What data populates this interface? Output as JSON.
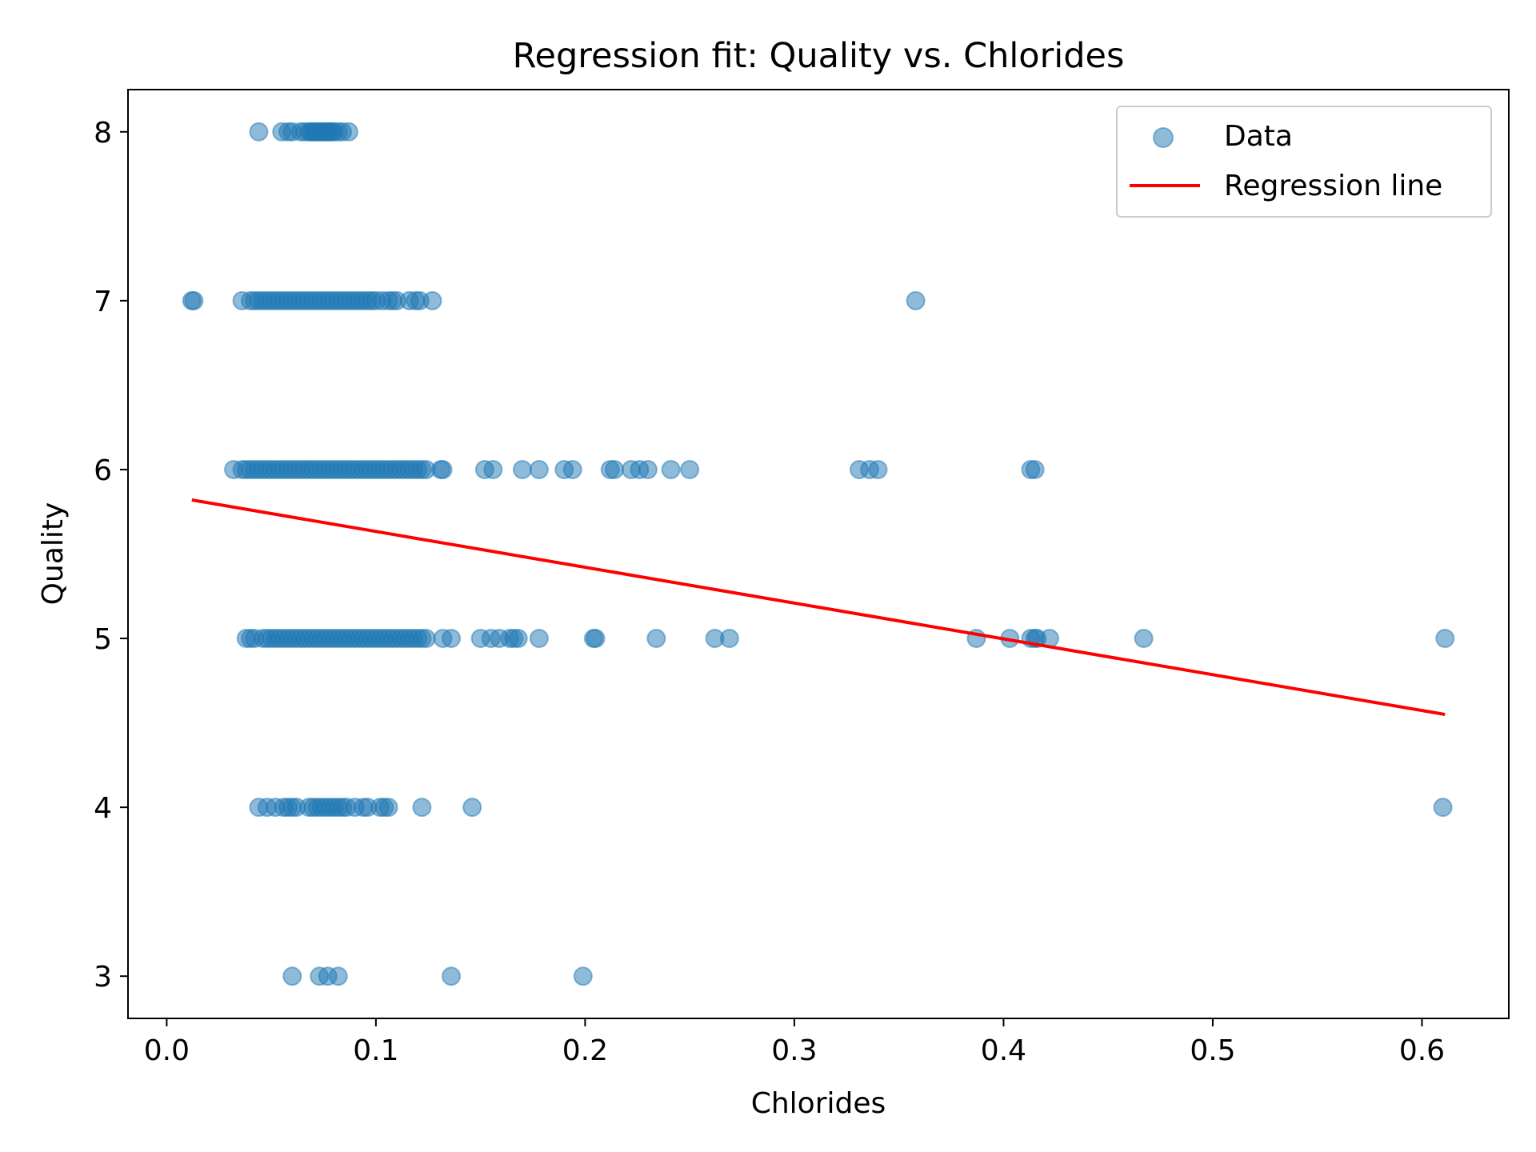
{
  "chart_data": {
    "type": "scatter",
    "title": "Regression fit: Quality vs. Chlorides",
    "xlabel": "Chlorides",
    "ylabel": "Quality",
    "xlim": [
      -0.0185,
      0.6415
    ],
    "ylim": [
      2.75,
      8.25
    ],
    "x_ticks": [
      0.0,
      0.1,
      0.2,
      0.3,
      0.4,
      0.5,
      0.6
    ],
    "x_tick_labels": [
      "0.0",
      "0.1",
      "0.2",
      "0.3",
      "0.4",
      "0.5",
      "0.6"
    ],
    "y_ticks": [
      3,
      4,
      5,
      6,
      7,
      8
    ],
    "y_tick_labels": [
      "3",
      "4",
      "5",
      "6",
      "7",
      "8"
    ],
    "grid": false,
    "legend_position": "top-right",
    "colors": {
      "points": "#1f77b4",
      "line": "#ff0000",
      "axis": "#000000"
    },
    "series": [
      {
        "name": "Data",
        "type": "scatter",
        "points": [
          [
            0.044,
            8
          ],
          [
            0.055,
            8
          ],
          [
            0.058,
            8
          ],
          [
            0.06,
            8
          ],
          [
            0.064,
            8
          ],
          [
            0.066,
            8
          ],
          [
            0.068,
            8
          ],
          [
            0.069,
            8
          ],
          [
            0.07,
            8
          ],
          [
            0.071,
            8
          ],
          [
            0.072,
            8
          ],
          [
            0.073,
            8
          ],
          [
            0.074,
            8
          ],
          [
            0.075,
            8
          ],
          [
            0.076,
            8
          ],
          [
            0.077,
            8
          ],
          [
            0.078,
            8
          ],
          [
            0.079,
            8
          ],
          [
            0.08,
            8
          ],
          [
            0.082,
            8
          ],
          [
            0.084,
            8
          ],
          [
            0.087,
            8
          ],
          [
            0.012,
            7
          ],
          [
            0.013,
            7
          ],
          [
            0.036,
            7
          ],
          [
            0.04,
            7
          ],
          [
            0.042,
            7
          ],
          [
            0.044,
            7
          ],
          [
            0.046,
            7
          ],
          [
            0.048,
            7
          ],
          [
            0.05,
            7
          ],
          [
            0.052,
            7
          ],
          [
            0.054,
            7
          ],
          [
            0.056,
            7
          ],
          [
            0.058,
            7
          ],
          [
            0.06,
            7
          ],
          [
            0.062,
            7
          ],
          [
            0.064,
            7
          ],
          [
            0.066,
            7
          ],
          [
            0.068,
            7
          ],
          [
            0.07,
            7
          ],
          [
            0.072,
            7
          ],
          [
            0.074,
            7
          ],
          [
            0.076,
            7
          ],
          [
            0.078,
            7
          ],
          [
            0.08,
            7
          ],
          [
            0.082,
            7
          ],
          [
            0.084,
            7
          ],
          [
            0.086,
            7
          ],
          [
            0.088,
            7
          ],
          [
            0.09,
            7
          ],
          [
            0.092,
            7
          ],
          [
            0.094,
            7
          ],
          [
            0.096,
            7
          ],
          [
            0.098,
            7
          ],
          [
            0.1,
            7
          ],
          [
            0.103,
            7
          ],
          [
            0.106,
            7
          ],
          [
            0.108,
            7
          ],
          [
            0.11,
            7
          ],
          [
            0.116,
            7
          ],
          [
            0.119,
            7
          ],
          [
            0.121,
            7
          ],
          [
            0.127,
            7
          ],
          [
            0.358,
            7
          ],
          [
            0.032,
            6
          ],
          [
            0.036,
            6
          ],
          [
            0.038,
            6
          ],
          [
            0.04,
            6
          ],
          [
            0.042,
            6
          ],
          [
            0.044,
            6
          ],
          [
            0.046,
            6
          ],
          [
            0.048,
            6
          ],
          [
            0.05,
            6
          ],
          [
            0.052,
            6
          ],
          [
            0.054,
            6
          ],
          [
            0.056,
            6
          ],
          [
            0.058,
            6
          ],
          [
            0.06,
            6
          ],
          [
            0.062,
            6
          ],
          [
            0.064,
            6
          ],
          [
            0.066,
            6
          ],
          [
            0.068,
            6
          ],
          [
            0.07,
            6
          ],
          [
            0.072,
            6
          ],
          [
            0.074,
            6
          ],
          [
            0.076,
            6
          ],
          [
            0.078,
            6
          ],
          [
            0.08,
            6
          ],
          [
            0.082,
            6
          ],
          [
            0.084,
            6
          ],
          [
            0.086,
            6
          ],
          [
            0.088,
            6
          ],
          [
            0.09,
            6
          ],
          [
            0.092,
            6
          ],
          [
            0.094,
            6
          ],
          [
            0.096,
            6
          ],
          [
            0.098,
            6
          ],
          [
            0.1,
            6
          ],
          [
            0.102,
            6
          ],
          [
            0.104,
            6
          ],
          [
            0.106,
            6
          ],
          [
            0.108,
            6
          ],
          [
            0.11,
            6
          ],
          [
            0.112,
            6
          ],
          [
            0.114,
            6
          ],
          [
            0.116,
            6
          ],
          [
            0.118,
            6
          ],
          [
            0.12,
            6
          ],
          [
            0.122,
            6
          ],
          [
            0.124,
            6
          ],
          [
            0.131,
            6
          ],
          [
            0.132,
            6
          ],
          [
            0.152,
            6
          ],
          [
            0.156,
            6
          ],
          [
            0.17,
            6
          ],
          [
            0.178,
            6
          ],
          [
            0.19,
            6
          ],
          [
            0.194,
            6
          ],
          [
            0.212,
            6
          ],
          [
            0.214,
            6
          ],
          [
            0.222,
            6
          ],
          [
            0.226,
            6
          ],
          [
            0.23,
            6
          ],
          [
            0.241,
            6
          ],
          [
            0.25,
            6
          ],
          [
            0.331,
            6
          ],
          [
            0.336,
            6
          ],
          [
            0.34,
            6
          ],
          [
            0.413,
            6
          ],
          [
            0.415,
            6
          ],
          [
            0.038,
            5
          ],
          [
            0.04,
            5
          ],
          [
            0.042,
            5
          ],
          [
            0.046,
            5
          ],
          [
            0.048,
            5
          ],
          [
            0.05,
            5
          ],
          [
            0.052,
            5
          ],
          [
            0.054,
            5
          ],
          [
            0.056,
            5
          ],
          [
            0.058,
            5
          ],
          [
            0.06,
            5
          ],
          [
            0.062,
            5
          ],
          [
            0.064,
            5
          ],
          [
            0.066,
            5
          ],
          [
            0.068,
            5
          ],
          [
            0.07,
            5
          ],
          [
            0.072,
            5
          ],
          [
            0.074,
            5
          ],
          [
            0.076,
            5
          ],
          [
            0.078,
            5
          ],
          [
            0.08,
            5
          ],
          [
            0.082,
            5
          ],
          [
            0.084,
            5
          ],
          [
            0.086,
            5
          ],
          [
            0.088,
            5
          ],
          [
            0.09,
            5
          ],
          [
            0.092,
            5
          ],
          [
            0.094,
            5
          ],
          [
            0.096,
            5
          ],
          [
            0.098,
            5
          ],
          [
            0.1,
            5
          ],
          [
            0.102,
            5
          ],
          [
            0.104,
            5
          ],
          [
            0.106,
            5
          ],
          [
            0.108,
            5
          ],
          [
            0.11,
            5
          ],
          [
            0.112,
            5
          ],
          [
            0.114,
            5
          ],
          [
            0.116,
            5
          ],
          [
            0.118,
            5
          ],
          [
            0.12,
            5
          ],
          [
            0.122,
            5
          ],
          [
            0.124,
            5
          ],
          [
            0.132,
            5
          ],
          [
            0.136,
            5
          ],
          [
            0.15,
            5
          ],
          [
            0.155,
            5
          ],
          [
            0.159,
            5
          ],
          [
            0.164,
            5
          ],
          [
            0.166,
            5
          ],
          [
            0.168,
            5
          ],
          [
            0.178,
            5
          ],
          [
            0.204,
            5
          ],
          [
            0.205,
            5
          ],
          [
            0.234,
            5
          ],
          [
            0.262,
            5
          ],
          [
            0.269,
            5
          ],
          [
            0.387,
            5
          ],
          [
            0.403,
            5
          ],
          [
            0.413,
            5
          ],
          [
            0.415,
            5
          ],
          [
            0.416,
            5
          ],
          [
            0.422,
            5
          ],
          [
            0.467,
            5
          ],
          [
            0.611,
            5
          ],
          [
            0.044,
            4
          ],
          [
            0.048,
            4
          ],
          [
            0.052,
            4
          ],
          [
            0.056,
            4
          ],
          [
            0.058,
            4
          ],
          [
            0.06,
            4
          ],
          [
            0.062,
            4
          ],
          [
            0.068,
            4
          ],
          [
            0.07,
            4
          ],
          [
            0.072,
            4
          ],
          [
            0.074,
            4
          ],
          [
            0.076,
            4
          ],
          [
            0.078,
            4
          ],
          [
            0.08,
            4
          ],
          [
            0.082,
            4
          ],
          [
            0.084,
            4
          ],
          [
            0.086,
            4
          ],
          [
            0.09,
            4
          ],
          [
            0.094,
            4
          ],
          [
            0.096,
            4
          ],
          [
            0.102,
            4
          ],
          [
            0.104,
            4
          ],
          [
            0.106,
            4
          ],
          [
            0.122,
            4
          ],
          [
            0.146,
            4
          ],
          [
            0.61,
            4
          ],
          [
            0.06,
            3
          ],
          [
            0.073,
            3
          ],
          [
            0.077,
            3
          ],
          [
            0.082,
            3
          ],
          [
            0.136,
            3
          ],
          [
            0.199,
            3
          ]
        ]
      },
      {
        "name": "Regression line",
        "type": "line",
        "x": [
          0.012,
          0.611
        ],
        "y": [
          5.82,
          4.55
        ]
      }
    ]
  }
}
